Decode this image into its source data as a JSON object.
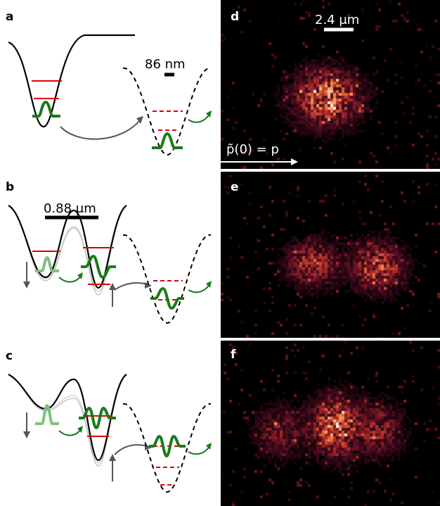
{
  "panels": {
    "a": {
      "label": "a",
      "scalebar": "86 nm"
    },
    "b": {
      "label": "b",
      "scalebar": "0.88 μm"
    },
    "c": {
      "label": "c"
    },
    "d": {
      "label": "d",
      "scalebar": "2.4 μm",
      "arrow_label": "p̃(0) = p"
    },
    "e": {
      "label": "e"
    },
    "f": {
      "label": "f"
    }
  },
  "colors": {
    "potential": "#000000",
    "energy_level": "#e00000",
    "wavefunction": "#1a7a1a",
    "wavefunction_faded": "#7fbf7f",
    "arrow_gray": "#555555",
    "arrow_green": "#1a7a1a",
    "image_background": "#000000"
  }
}
